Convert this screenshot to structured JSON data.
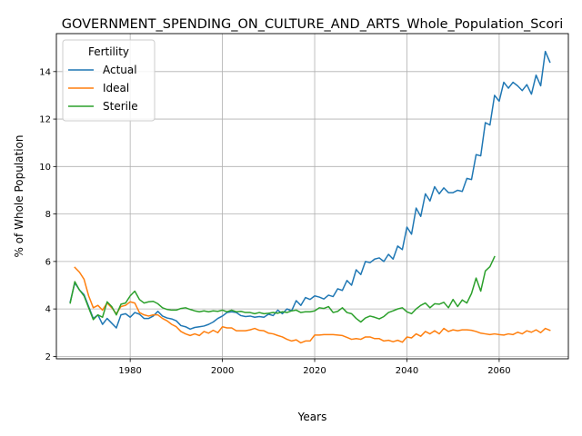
{
  "chart_data": {
    "type": "line",
    "title": "GOVERNMENT_SPENDING_ON_CULTURE_AND_ARTS_Whole_Population_Scori",
    "xlabel": "Years",
    "ylabel": "% of Whole Population",
    "xlim": [
      1964,
      2075
    ],
    "ylim": [
      1.9,
      15.6
    ],
    "x_ticks": [
      1980,
      2000,
      2020,
      2040,
      2060
    ],
    "y_ticks": [
      2,
      4,
      6,
      8,
      10,
      12,
      14
    ],
    "grid": true,
    "legend": {
      "title": "Fertility",
      "position": "top-left"
    },
    "series": [
      {
        "name": "Actual",
        "color": "#1f77b4",
        "points": [
          [
            1967,
            4.3
          ],
          [
            1968,
            5.1
          ],
          [
            1969,
            4.8
          ],
          [
            1970,
            4.6
          ],
          [
            1971,
            4.1
          ],
          [
            1972,
            3.6
          ],
          [
            1973,
            3.75
          ],
          [
            1974,
            3.35
          ],
          [
            1975,
            3.6
          ],
          [
            1976,
            3.4
          ],
          [
            1977,
            3.2
          ],
          [
            1978,
            3.75
          ],
          [
            1979,
            3.8
          ],
          [
            1980,
            3.65
          ],
          [
            1981,
            3.85
          ],
          [
            1982,
            3.78
          ],
          [
            1983,
            3.6
          ],
          [
            1984,
            3.6
          ],
          [
            1985,
            3.7
          ],
          [
            1986,
            3.9
          ],
          [
            1987,
            3.7
          ],
          [
            1988,
            3.62
          ],
          [
            1989,
            3.58
          ],
          [
            1990,
            3.5
          ],
          [
            1991,
            3.3
          ],
          [
            1992,
            3.25
          ],
          [
            1993,
            3.15
          ],
          [
            1994,
            3.22
          ],
          [
            1995,
            3.25
          ],
          [
            1996,
            3.28
          ],
          [
            1997,
            3.35
          ],
          [
            1998,
            3.45
          ],
          [
            1999,
            3.6
          ],
          [
            2000,
            3.7
          ],
          [
            2001,
            3.85
          ],
          [
            2002,
            3.88
          ],
          [
            2003,
            3.85
          ],
          [
            2004,
            3.72
          ],
          [
            2005,
            3.68
          ],
          [
            2006,
            3.7
          ],
          [
            2007,
            3.65
          ],
          [
            2008,
            3.68
          ],
          [
            2009,
            3.65
          ],
          [
            2010,
            3.78
          ],
          [
            2011,
            3.72
          ],
          [
            2012,
            3.95
          ],
          [
            2013,
            3.8
          ],
          [
            2014,
            4.0
          ],
          [
            2015,
            3.92
          ],
          [
            2016,
            4.35
          ],
          [
            2017,
            4.15
          ],
          [
            2018,
            4.48
          ],
          [
            2019,
            4.4
          ],
          [
            2020,
            4.55
          ],
          [
            2021,
            4.5
          ],
          [
            2022,
            4.42
          ],
          [
            2023,
            4.58
          ],
          [
            2024,
            4.52
          ],
          [
            2025,
            4.85
          ],
          [
            2026,
            4.78
          ],
          [
            2027,
            5.2
          ],
          [
            2028,
            5.0
          ],
          [
            2029,
            5.65
          ],
          [
            2030,
            5.45
          ],
          [
            2031,
            6.0
          ],
          [
            2032,
            5.95
          ],
          [
            2033,
            6.1
          ],
          [
            2034,
            6.15
          ],
          [
            2035,
            6.0
          ],
          [
            2036,
            6.3
          ],
          [
            2037,
            6.1
          ],
          [
            2038,
            6.65
          ],
          [
            2039,
            6.5
          ],
          [
            2040,
            7.45
          ],
          [
            2041,
            7.15
          ],
          [
            2042,
            8.25
          ],
          [
            2043,
            7.9
          ],
          [
            2044,
            8.85
          ],
          [
            2045,
            8.55
          ],
          [
            2046,
            9.15
          ],
          [
            2047,
            8.85
          ],
          [
            2048,
            9.1
          ],
          [
            2049,
            8.9
          ],
          [
            2050,
            8.9
          ],
          [
            2051,
            9.0
          ],
          [
            2052,
            8.95
          ],
          [
            2053,
            9.5
          ],
          [
            2054,
            9.45
          ],
          [
            2055,
            10.5
          ],
          [
            2056,
            10.45
          ],
          [
            2057,
            11.85
          ],
          [
            2058,
            11.75
          ],
          [
            2059,
            13.0
          ],
          [
            2060,
            12.75
          ],
          [
            2061,
            13.55
          ],
          [
            2062,
            13.3
          ],
          [
            2063,
            13.55
          ],
          [
            2064,
            13.4
          ],
          [
            2065,
            13.2
          ],
          [
            2066,
            13.45
          ],
          [
            2067,
            13.05
          ],
          [
            2068,
            13.85
          ],
          [
            2069,
            13.4
          ],
          [
            2070,
            14.85
          ],
          [
            2071,
            14.4
          ]
        ]
      },
      {
        "name": "Ideal",
        "color": "#ff7f0e",
        "points": [
          [
            1968,
            5.75
          ],
          [
            1969,
            5.55
          ],
          [
            1970,
            5.25
          ],
          [
            1971,
            4.55
          ],
          [
            1972,
            4.05
          ],
          [
            1973,
            4.15
          ],
          [
            1974,
            3.95
          ],
          [
            1975,
            4.25
          ],
          [
            1976,
            4.05
          ],
          [
            1977,
            3.8
          ],
          [
            1978,
            4.1
          ],
          [
            1979,
            4.15
          ],
          [
            1980,
            4.3
          ],
          [
            1981,
            4.25
          ],
          [
            1982,
            3.85
          ],
          [
            1983,
            3.75
          ],
          [
            1984,
            3.7
          ],
          [
            1985,
            3.75
          ],
          [
            1986,
            3.75
          ],
          [
            1987,
            3.6
          ],
          [
            1988,
            3.5
          ],
          [
            1989,
            3.35
          ],
          [
            1990,
            3.25
          ],
          [
            1991,
            3.05
          ],
          [
            1992,
            2.95
          ],
          [
            1993,
            2.88
          ],
          [
            1994,
            2.95
          ],
          [
            1995,
            2.88
          ],
          [
            1996,
            3.05
          ],
          [
            1997,
            2.98
          ],
          [
            1998,
            3.1
          ],
          [
            1999,
            3.0
          ],
          [
            2000,
            3.25
          ],
          [
            2001,
            3.2
          ],
          [
            2002,
            3.2
          ],
          [
            2003,
            3.08
          ],
          [
            2004,
            3.08
          ],
          [
            2005,
            3.08
          ],
          [
            2006,
            3.12
          ],
          [
            2007,
            3.18
          ],
          [
            2008,
            3.1
          ],
          [
            2009,
            3.08
          ],
          [
            2010,
            2.98
          ],
          [
            2011,
            2.95
          ],
          [
            2012,
            2.88
          ],
          [
            2013,
            2.82
          ],
          [
            2014,
            2.72
          ],
          [
            2015,
            2.65
          ],
          [
            2016,
            2.7
          ],
          [
            2017,
            2.57
          ],
          [
            2018,
            2.65
          ],
          [
            2019,
            2.65
          ],
          [
            2020,
            2.9
          ],
          [
            2021,
            2.9
          ],
          [
            2022,
            2.92
          ],
          [
            2023,
            2.92
          ],
          [
            2024,
            2.92
          ],
          [
            2025,
            2.9
          ],
          [
            2026,
            2.88
          ],
          [
            2027,
            2.8
          ],
          [
            2028,
            2.72
          ],
          [
            2029,
            2.75
          ],
          [
            2030,
            2.72
          ],
          [
            2031,
            2.82
          ],
          [
            2032,
            2.82
          ],
          [
            2033,
            2.75
          ],
          [
            2034,
            2.75
          ],
          [
            2035,
            2.65
          ],
          [
            2036,
            2.68
          ],
          [
            2037,
            2.62
          ],
          [
            2038,
            2.68
          ],
          [
            2039,
            2.6
          ],
          [
            2040,
            2.82
          ],
          [
            2041,
            2.78
          ],
          [
            2042,
            2.95
          ],
          [
            2043,
            2.85
          ],
          [
            2044,
            3.05
          ],
          [
            2045,
            2.95
          ],
          [
            2046,
            3.08
          ],
          [
            2047,
            2.95
          ],
          [
            2048,
            3.18
          ],
          [
            2049,
            3.05
          ],
          [
            2050,
            3.12
          ],
          [
            2051,
            3.08
          ],
          [
            2052,
            3.12
          ],
          [
            2053,
            3.12
          ],
          [
            2054,
            3.1
          ],
          [
            2055,
            3.05
          ],
          [
            2056,
            2.98
          ],
          [
            2057,
            2.95
          ],
          [
            2058,
            2.92
          ],
          [
            2059,
            2.95
          ],
          [
            2060,
            2.92
          ],
          [
            2061,
            2.9
          ],
          [
            2062,
            2.95
          ],
          [
            2063,
            2.92
          ],
          [
            2064,
            3.02
          ],
          [
            2065,
            2.95
          ],
          [
            2066,
            3.08
          ],
          [
            2067,
            3.02
          ],
          [
            2068,
            3.12
          ],
          [
            2069,
            3.0
          ],
          [
            2070,
            3.18
          ],
          [
            2071,
            3.1
          ]
        ]
      },
      {
        "name": "Sterile",
        "color": "#2ca02c",
        "points": [
          [
            1967,
            4.25
          ],
          [
            1968,
            5.15
          ],
          [
            1969,
            4.8
          ],
          [
            1970,
            4.55
          ],
          [
            1971,
            4.05
          ],
          [
            1972,
            3.55
          ],
          [
            1973,
            3.75
          ],
          [
            1974,
            3.65
          ],
          [
            1975,
            4.3
          ],
          [
            1976,
            4.1
          ],
          [
            1977,
            3.75
          ],
          [
            1978,
            4.2
          ],
          [
            1979,
            4.25
          ],
          [
            1980,
            4.55
          ],
          [
            1981,
            4.75
          ],
          [
            1982,
            4.4
          ],
          [
            1983,
            4.25
          ],
          [
            1984,
            4.3
          ],
          [
            1985,
            4.32
          ],
          [
            1986,
            4.22
          ],
          [
            1987,
            4.05
          ],
          [
            1988,
            3.98
          ],
          [
            1989,
            3.95
          ],
          [
            1990,
            3.95
          ],
          [
            1991,
            4.02
          ],
          [
            1992,
            4.05
          ],
          [
            1993,
            3.98
          ],
          [
            1994,
            3.92
          ],
          [
            1995,
            3.88
          ],
          [
            1996,
            3.92
          ],
          [
            1997,
            3.88
          ],
          [
            1998,
            3.92
          ],
          [
            1999,
            3.9
          ],
          [
            2000,
            3.95
          ],
          [
            2001,
            3.88
          ],
          [
            2002,
            3.95
          ],
          [
            2003,
            3.88
          ],
          [
            2004,
            3.9
          ],
          [
            2005,
            3.85
          ],
          [
            2006,
            3.85
          ],
          [
            2007,
            3.8
          ],
          [
            2008,
            3.85
          ],
          [
            2009,
            3.8
          ],
          [
            2010,
            3.82
          ],
          [
            2011,
            3.85
          ],
          [
            2012,
            3.82
          ],
          [
            2013,
            3.88
          ],
          [
            2014,
            3.85
          ],
          [
            2015,
            3.92
          ],
          [
            2016,
            3.95
          ],
          [
            2017,
            3.85
          ],
          [
            2018,
            3.88
          ],
          [
            2019,
            3.88
          ],
          [
            2020,
            3.92
          ],
          [
            2021,
            4.05
          ],
          [
            2022,
            4.02
          ],
          [
            2023,
            4.1
          ],
          [
            2024,
            3.85
          ],
          [
            2025,
            3.9
          ],
          [
            2026,
            4.05
          ],
          [
            2027,
            3.85
          ],
          [
            2028,
            3.8
          ],
          [
            2029,
            3.6
          ],
          [
            2030,
            3.45
          ],
          [
            2031,
            3.62
          ],
          [
            2032,
            3.7
          ],
          [
            2033,
            3.65
          ],
          [
            2034,
            3.58
          ],
          [
            2035,
            3.68
          ],
          [
            2036,
            3.85
          ],
          [
            2037,
            3.92
          ],
          [
            2038,
            4.0
          ],
          [
            2039,
            4.05
          ],
          [
            2040,
            3.88
          ],
          [
            2041,
            3.8
          ],
          [
            2042,
            4.0
          ],
          [
            2043,
            4.15
          ],
          [
            2044,
            4.25
          ],
          [
            2045,
            4.05
          ],
          [
            2046,
            4.22
          ],
          [
            2047,
            4.2
          ],
          [
            2048,
            4.28
          ],
          [
            2049,
            4.05
          ],
          [
            2050,
            4.4
          ],
          [
            2051,
            4.1
          ],
          [
            2052,
            4.38
          ],
          [
            2053,
            4.25
          ],
          [
            2054,
            4.65
          ],
          [
            2055,
            5.3
          ],
          [
            2056,
            4.75
          ],
          [
            2057,
            5.6
          ],
          [
            2058,
            5.78
          ],
          [
            2059,
            6.2
          ]
        ]
      }
    ]
  }
}
